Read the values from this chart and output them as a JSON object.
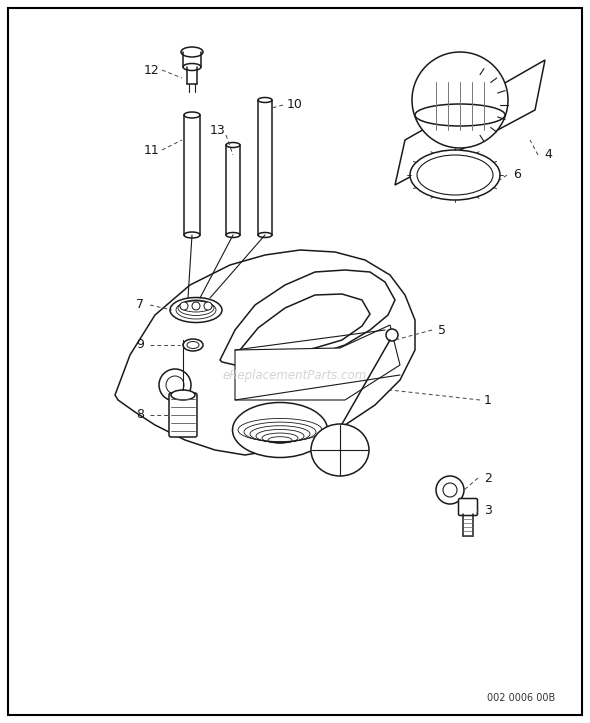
{
  "background_color": "#ffffff",
  "border_color": "#000000",
  "watermark": "eReplacementParts.com",
  "part_number": "002 0006 00B",
  "fig_width": 5.9,
  "fig_height": 7.23
}
